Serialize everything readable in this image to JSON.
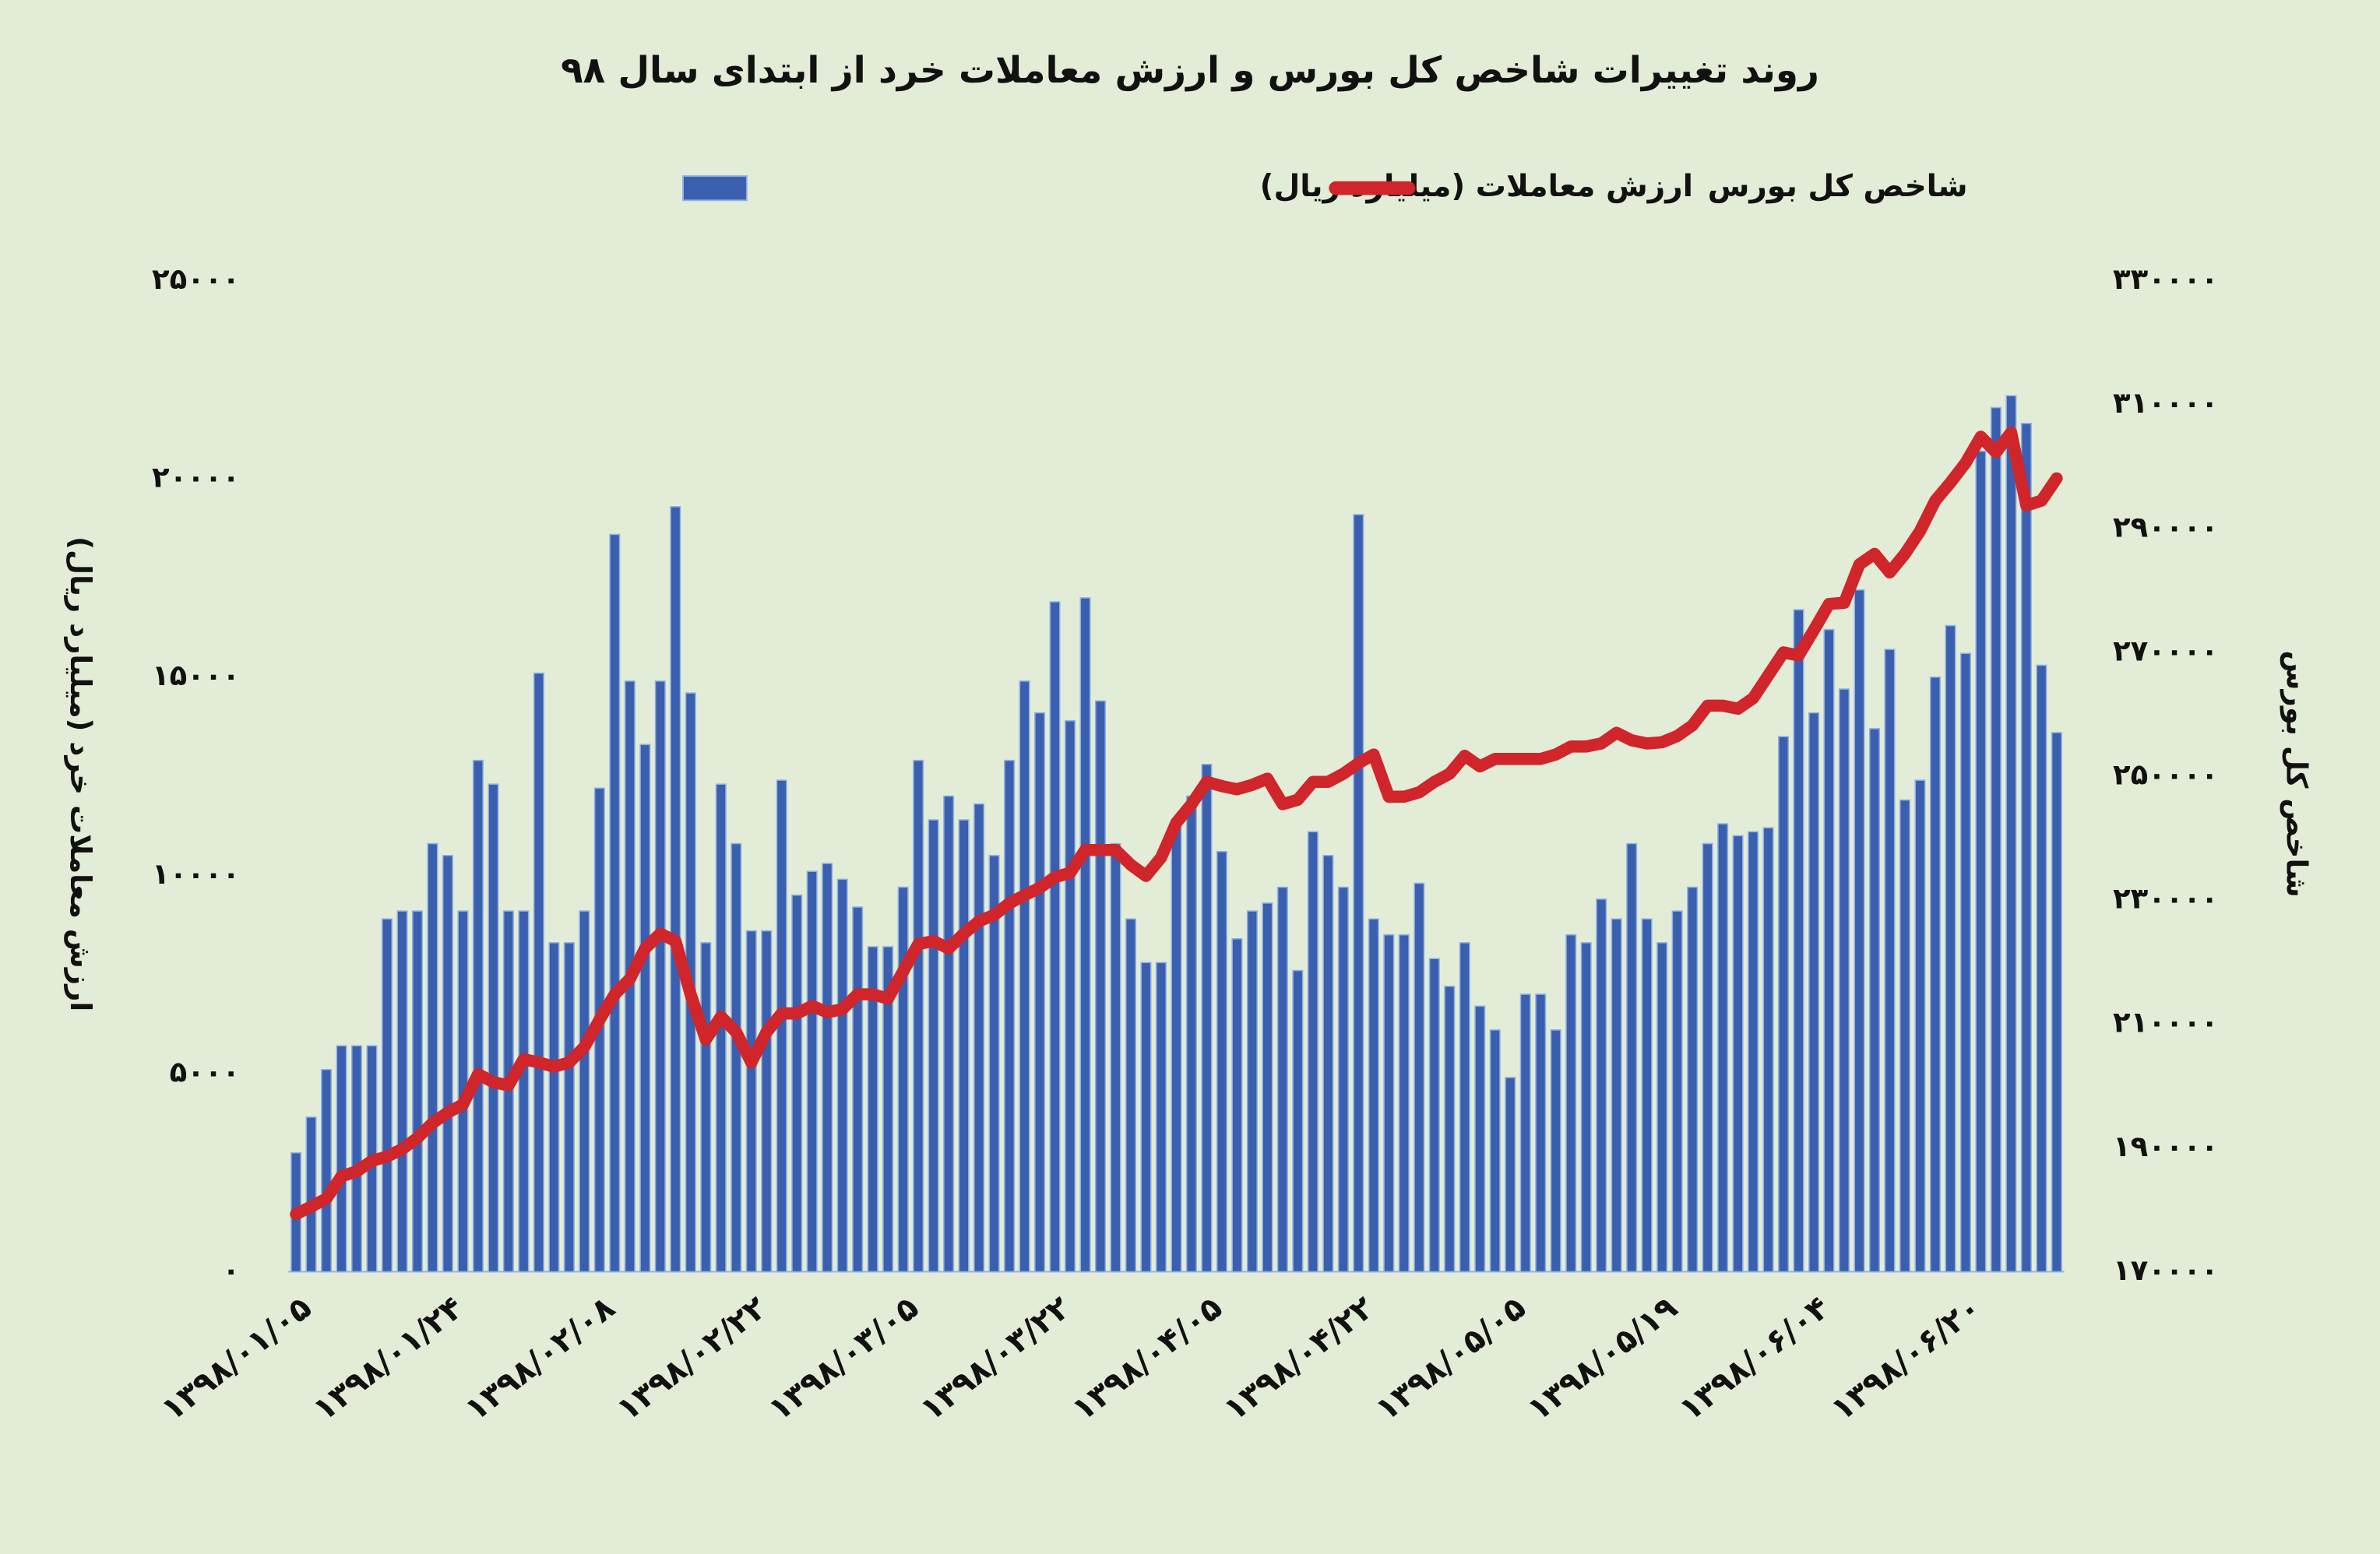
{
  "chart_data": {
    "type": "bar-line",
    "title": "روند تغییرات شاخص کل بورس و ارزش معاملات خرد از ابتدای سال ۹۸",
    "y_label": "ارزش معاملات خرد (میلیارد ریال)",
    "y2_label": "شاخص کل بورس",
    "categories": [
      "۱۳۹۸/۰۱/۰۵",
      null,
      null,
      null,
      null,
      null,
      null,
      null,
      null,
      null,
      "۱۳۹۸/۰۱/۲۴",
      null,
      null,
      null,
      null,
      null,
      null,
      null,
      null,
      null,
      "۱۳۹۸/۰۲/۰۸",
      null,
      null,
      null,
      null,
      null,
      null,
      null,
      null,
      null,
      "۱۳۹۸/۰۲/۲۲",
      null,
      null,
      null,
      null,
      null,
      null,
      null,
      null,
      null,
      "۱۳۹۸/۰۳/۰۵",
      null,
      null,
      null,
      null,
      null,
      null,
      null,
      null,
      null,
      "۱۳۹۸/۰۳/۲۲",
      null,
      null,
      null,
      null,
      null,
      null,
      null,
      null,
      null,
      "۱۳۹۸/۰۴/۰۵",
      null,
      null,
      null,
      null,
      null,
      null,
      null,
      null,
      null,
      "۱۳۹۸/۰۴/۲۲",
      null,
      null,
      null,
      null,
      null,
      null,
      null,
      null,
      null,
      "۱۳۹۸/۰۵/۰۵",
      null,
      null,
      null,
      null,
      null,
      null,
      null,
      null,
      null,
      "۱۳۹۸/۰۵/۱۹",
      null,
      null,
      null,
      null,
      null,
      null,
      null,
      null,
      null,
      "۱۳۹۸/۰۶/۰۴",
      null,
      null,
      null,
      null,
      null,
      null,
      null,
      null,
      null,
      "۱۳۹۸/۰۶/۲۰",
      null,
      null,
      null,
      null,
      null,
      null
    ],
    "series": [
      {
        "name": "ارزش معاملات (میلیارد ریال)",
        "type": "bar",
        "color": "#3a5fae",
        "values": [
          3000,
          3900,
          5100,
          5700,
          5700,
          5700,
          8900,
          9100,
          9100,
          10800,
          10500,
          9100,
          12900,
          12300,
          9100,
          9100,
          15100,
          8300,
          8300,
          9100,
          12200,
          18600,
          14900,
          13300,
          14900,
          19300,
          14600,
          8300,
          12300,
          10800,
          8600,
          8600,
          12400,
          9500,
          10100,
          10300,
          9900,
          9200,
          8200,
          8200,
          9700,
          12900,
          11400,
          12000,
          11400,
          11800,
          10500,
          12900,
          14900,
          14100,
          16900,
          13900,
          17000,
          14400,
          10800,
          8900,
          7800,
          7800,
          11400,
          12000,
          12800,
          10600,
          8400,
          9100,
          9300,
          9700,
          7600,
          11100,
          10500,
          9700,
          19100,
          8900,
          8500,
          8500,
          9800,
          7900,
          7200,
          8300,
          6700,
          6100,
          4900,
          7000,
          7000,
          6100,
          8500,
          8300,
          9400,
          8900,
          10800,
          8900,
          8300,
          9100,
          9700,
          10800,
          11300,
          11000,
          11100,
          11200,
          13500,
          16700,
          14100,
          16200,
          14700,
          17200,
          13700,
          15700,
          11900,
          12400,
          15000,
          16300,
          15600,
          20700,
          21800,
          22100,
          21400,
          15300,
          13600
        ]
      },
      {
        "name": "شاخص کل بورس",
        "type": "line",
        "axis": "y2",
        "color": "#d0252b",
        "values": [
          179300,
          180500,
          181800,
          185400,
          186200,
          187900,
          188600,
          189800,
          191600,
          194000,
          195700,
          197000,
          201900,
          200600,
          200100,
          204300,
          203800,
          203100,
          203800,
          206300,
          210700,
          214800,
          217300,
          222200,
          224600,
          223400,
          214800,
          207500,
          211200,
          208700,
          203800,
          208700,
          211700,
          211700,
          212900,
          211900,
          212400,
          214800,
          214800,
          214100,
          218500,
          222900,
          223400,
          222200,
          224600,
          226600,
          227600,
          229500,
          230800,
          232000,
          233700,
          234400,
          238100,
          238100,
          238100,
          235700,
          233900,
          236900,
          242500,
          245500,
          249100,
          248400,
          247900,
          248600,
          249600,
          245500,
          246200,
          249100,
          249100,
          250400,
          252100,
          253500,
          246700,
          246700,
          247400,
          249100,
          250400,
          253300,
          251600,
          252800,
          252800,
          252800,
          252800,
          253500,
          254800,
          254800,
          255300,
          257000,
          255800,
          255300,
          255500,
          256500,
          258200,
          261400,
          261400,
          260900,
          262600,
          266300,
          270000,
          269500,
          273600,
          277800,
          278000,
          284200,
          285900,
          282900,
          285900,
          289600,
          294500,
          297400,
          300600,
          304800,
          302300,
          305500,
          293700,
          294500,
          298100
        ]
      }
    ],
    "ylim": [
      0,
      25000
    ],
    "yticks": [
      {
        "value": 0,
        "label": "۰"
      },
      {
        "value": 5000,
        "label": "۵۰۰۰"
      },
      {
        "value": 10000,
        "label": "۱۰۰۰۰"
      },
      {
        "value": 15000,
        "label": "۱۵۰۰۰"
      },
      {
        "value": 20000,
        "label": "۲۰۰۰۰"
      },
      {
        "value": 25000,
        "label": "۲۵۰۰۰"
      }
    ],
    "y2lim": [
      170000,
      330000
    ],
    "y2ticks": [
      {
        "value": 170000,
        "label": "۱۷۰۰۰۰"
      },
      {
        "value": 190000,
        "label": "۱۹۰۰۰۰"
      },
      {
        "value": 210000,
        "label": "۲۱۰۰۰۰"
      },
      {
        "value": 230000,
        "label": "۲۳۰۰۰۰"
      },
      {
        "value": 250000,
        "label": "۲۵۰۰۰۰"
      },
      {
        "value": 270000,
        "label": "۲۷۰۰۰۰"
      },
      {
        "value": 290000,
        "label": "۲۹۰۰۰۰"
      },
      {
        "value": 310000,
        "label": "۳۱۰۰۰۰"
      },
      {
        "value": 330000,
        "label": "۳۳۰۰۰۰"
      }
    ],
    "grid": false
  }
}
